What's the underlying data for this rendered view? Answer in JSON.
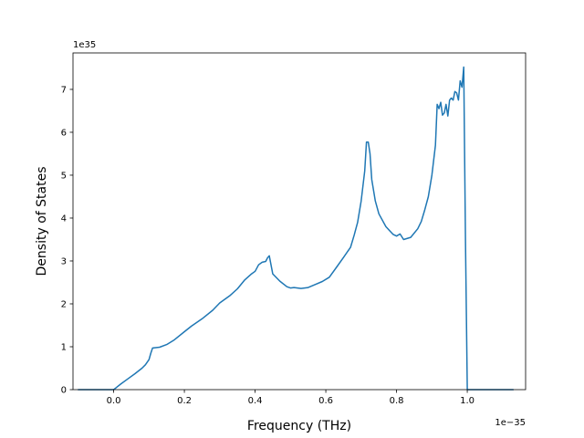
{
  "chart_data": {
    "type": "line",
    "title": "",
    "xlabel": "Frequency (THz)",
    "ylabel": "Density of States",
    "x_offset_label": "1e−35",
    "y_offset_label": "1e35",
    "xlim": [
      -0.115,
      1.165
    ],
    "ylim": [
      0,
      7.85
    ],
    "x_ticks": [
      0.0,
      0.2,
      0.4,
      0.6,
      0.8,
      1.0
    ],
    "x_tick_labels": [
      "0.0",
      "0.2",
      "0.4",
      "0.6",
      "0.8",
      "1.0"
    ],
    "y_ticks": [
      0,
      1,
      2,
      3,
      4,
      5,
      6,
      7
    ],
    "y_tick_labels": [
      "0",
      "1",
      "2",
      "3",
      "4",
      "5",
      "6",
      "7"
    ],
    "grid": false,
    "legend": "none",
    "series": [
      {
        "color": "#1f77b4",
        "x": [
          -0.1,
          -0.05,
          0.0,
          0.02,
          0.04,
          0.06,
          0.08,
          0.09,
          0.1,
          0.105,
          0.11,
          0.13,
          0.15,
          0.17,
          0.2,
          0.22,
          0.25,
          0.28,
          0.3,
          0.33,
          0.35,
          0.37,
          0.39,
          0.4,
          0.41,
          0.42,
          0.43,
          0.435,
          0.44,
          0.45,
          0.47,
          0.49,
          0.5,
          0.51,
          0.53,
          0.55,
          0.57,
          0.59,
          0.61,
          0.63,
          0.65,
          0.67,
          0.68,
          0.69,
          0.7,
          0.71,
          0.715,
          0.72,
          0.725,
          0.73,
          0.74,
          0.75,
          0.77,
          0.79,
          0.8,
          0.81,
          0.82,
          0.84,
          0.86,
          0.87,
          0.88,
          0.89,
          0.9,
          0.91,
          0.915,
          0.92,
          0.925,
          0.93,
          0.935,
          0.94,
          0.945,
          0.95,
          0.955,
          0.96,
          0.965,
          0.97,
          0.975,
          0.98,
          0.985,
          0.99,
          0.995,
          1.0,
          1.005,
          1.01,
          1.015,
          1.02,
          1.025,
          1.05,
          1.1,
          1.13
        ],
        "y": [
          0,
          0,
          0,
          0.13,
          0.25,
          0.37,
          0.5,
          0.58,
          0.7,
          0.85,
          0.97,
          0.99,
          1.05,
          1.15,
          1.35,
          1.48,
          1.65,
          1.85,
          2.02,
          2.2,
          2.35,
          2.55,
          2.7,
          2.76,
          2.91,
          2.97,
          2.99,
          3.07,
          3.12,
          2.7,
          2.53,
          2.4,
          2.37,
          2.38,
          2.36,
          2.38,
          2.45,
          2.52,
          2.62,
          2.85,
          3.08,
          3.32,
          3.6,
          3.9,
          4.4,
          5.1,
          5.77,
          5.77,
          5.5,
          4.9,
          4.4,
          4.1,
          3.8,
          3.62,
          3.58,
          3.63,
          3.5,
          3.55,
          3.75,
          3.92,
          4.2,
          4.5,
          5.0,
          5.7,
          6.65,
          6.55,
          6.7,
          6.4,
          6.45,
          6.65,
          6.38,
          6.75,
          6.8,
          6.75,
          6.95,
          6.92,
          6.75,
          7.2,
          7.05,
          7.52,
          3.5,
          0,
          0,
          0,
          0,
          0,
          0,
          0,
          0,
          0
        ]
      }
    ]
  }
}
